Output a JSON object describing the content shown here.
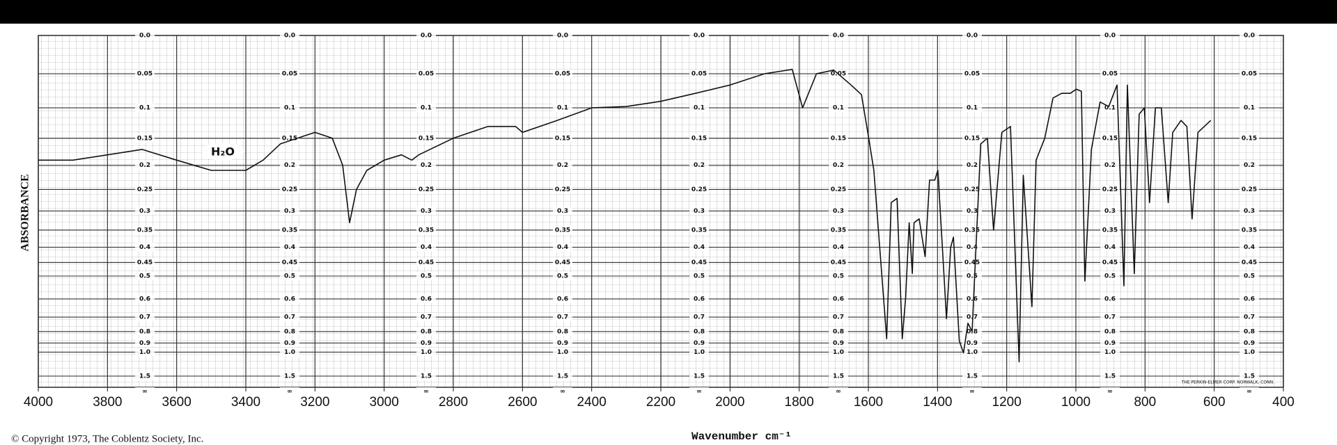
{
  "chart_data": {
    "type": "line",
    "xlabel": "Wavenumber cm⁻¹",
    "ylabel": "ABSORBANCE",
    "annotation": "H₂O",
    "footnote": "© Copyright 1973, The Coblentz Society, Inc.",
    "credit": "THE PERKIN-ELMER CORP. NORWALK, CONN.",
    "color": "#111111",
    "grid": true,
    "yscale": "transmittance",
    "xlim": [
      4000,
      400
    ],
    "xticks": [
      4000,
      3800,
      3600,
      3400,
      3200,
      3000,
      2800,
      2600,
      2400,
      2200,
      2000,
      1800,
      1600,
      1400,
      1200,
      1000,
      800,
      600,
      400
    ],
    "yticks": [
      {
        "value": 0,
        "label": "0.0"
      },
      0.05,
      0.1,
      0.15,
      0.2,
      0.25,
      0.3,
      0.35,
      0.4,
      0.45,
      0.5,
      0.6,
      0.7,
      0.8,
      0.9,
      {
        "value": 1,
        "label": "1.0"
      },
      1.5,
      {
        "value": null,
        "label": "∞"
      }
    ],
    "x": [
      4000,
      3900,
      3800,
      3700,
      3600,
      3550,
      3500,
      3450,
      3400,
      3350,
      3300,
      3200,
      3150,
      3120,
      3100,
      3080,
      3050,
      3000,
      2950,
      2920,
      2900,
      2800,
      2700,
      2620,
      2600,
      2500,
      2400,
      2300,
      2200,
      2100,
      2000,
      1900,
      1820,
      1790,
      1750,
      1700,
      1650,
      1620,
      1600,
      1584,
      1547,
      1534,
      1517,
      1502,
      1492,
      1482,
      1473,
      1468,
      1453,
      1436,
      1423,
      1408,
      1399,
      1386,
      1374,
      1362,
      1354,
      1337,
      1325,
      1312,
      1300,
      1275,
      1256,
      1238,
      1214,
      1189,
      1164,
      1152,
      1127,
      1115,
      1090,
      1066,
      1041,
      1016,
      999,
      984,
      974,
      955,
      930,
      905,
      881,
      861,
      851,
      831,
      817,
      802,
      787,
      770,
      753,
      733,
      720,
      696,
      679,
      664,
      647,
      610
    ],
    "values": [
      0.19,
      0.19,
      0.18,
      0.17,
      0.19,
      0.2,
      0.21,
      0.21,
      0.21,
      0.19,
      0.16,
      0.14,
      0.15,
      0.2,
      0.33,
      0.25,
      0.21,
      0.19,
      0.18,
      0.19,
      0.18,
      0.15,
      0.13,
      0.13,
      0.14,
      0.12,
      0.1,
      0.098,
      0.09,
      0.078,
      0.066,
      0.05,
      0.044,
      0.1,
      0.05,
      0.045,
      0.066,
      0.08,
      0.146,
      0.21,
      0.86,
      0.28,
      0.27,
      0.86,
      0.59,
      0.33,
      0.49,
      0.33,
      0.32,
      0.43,
      0.23,
      0.23,
      0.21,
      0.4,
      0.71,
      0.4,
      0.37,
      0.88,
      1.01,
      0.74,
      0.8,
      0.16,
      0.15,
      0.35,
      0.14,
      0.13,
      1.14,
      0.22,
      0.64,
      0.19,
      0.15,
      0.085,
      0.078,
      0.078,
      0.072,
      0.075,
      0.52,
      0.17,
      0.091,
      0.098,
      0.066,
      0.54,
      0.066,
      0.49,
      0.11,
      0.1,
      0.28,
      0.1,
      0.1,
      0.28,
      0.14,
      0.12,
      0.13,
      0.32,
      0.14,
      0.12
    ]
  }
}
